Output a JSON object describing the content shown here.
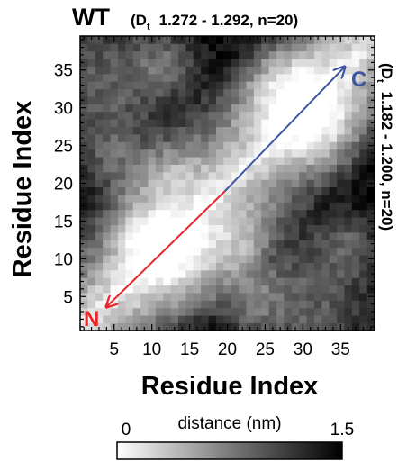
{
  "chart_data": {
    "type": "heatmap",
    "title": "WT",
    "subtitle_top": {
      "prefix": "(D",
      "subscript": "t",
      "rest": "1.272 - 1.292, n=20)"
    },
    "subtitle_right": {
      "prefix": "(D",
      "subscript": "t",
      "rest": "1.182 - 1.200, n=20)"
    },
    "xlabel": "Residue Index",
    "ylabel": "Residue Index",
    "x_ticks": [
      5,
      10,
      15,
      20,
      25,
      30,
      35
    ],
    "y_ticks": [
      5,
      10,
      15,
      20,
      25,
      30,
      35
    ],
    "xlim": [
      1,
      39
    ],
    "ylim": [
      1,
      39
    ],
    "colorbar": {
      "label": "distance (nm)",
      "min_label": "0",
      "max_label": "1.5",
      "range": [
        0,
        1.5
      ]
    },
    "colors": {
      "low": "#ffffff",
      "high": "#000000",
      "arrow_red": "#e8262b",
      "arrow_blue": "#3e55a6",
      "terminus_n": "#e8262b",
      "terminus_c": "#3e55a6"
    },
    "annotations": {
      "n_terminus": "N",
      "c_terminus": "C"
    }
  }
}
